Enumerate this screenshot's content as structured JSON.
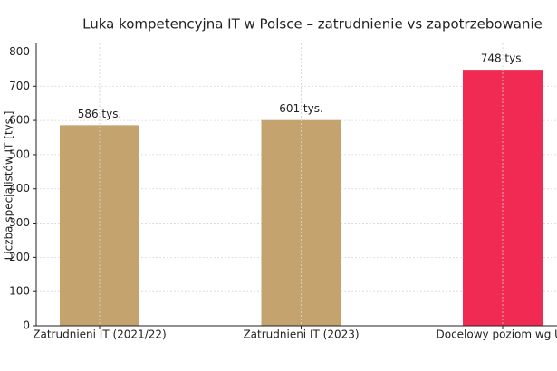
{
  "chart_data": {
    "type": "bar",
    "title": "Luka kompetencyjna IT w Polsce – zatrudnienie vs zapotrzebowanie",
    "y_label": "Liczba specjalistów IT [tys.]",
    "categories": [
      "Zatrudnieni IT (2021/22)",
      "Zatrudnieni IT (2023)",
      "Docelowy poziom wg UE"
    ],
    "values": [
      586,
      601,
      748
    ],
    "value_labels": [
      "586 tys.",
      "601 tys.",
      "748 tys."
    ],
    "colors": [
      "#c4a36f",
      "#c4a36f",
      "#f02a52"
    ],
    "ylim": [
      0,
      825
    ],
    "yticks": [
      0,
      100,
      200,
      300,
      400,
      500,
      600,
      700,
      800
    ],
    "grid": true
  }
}
